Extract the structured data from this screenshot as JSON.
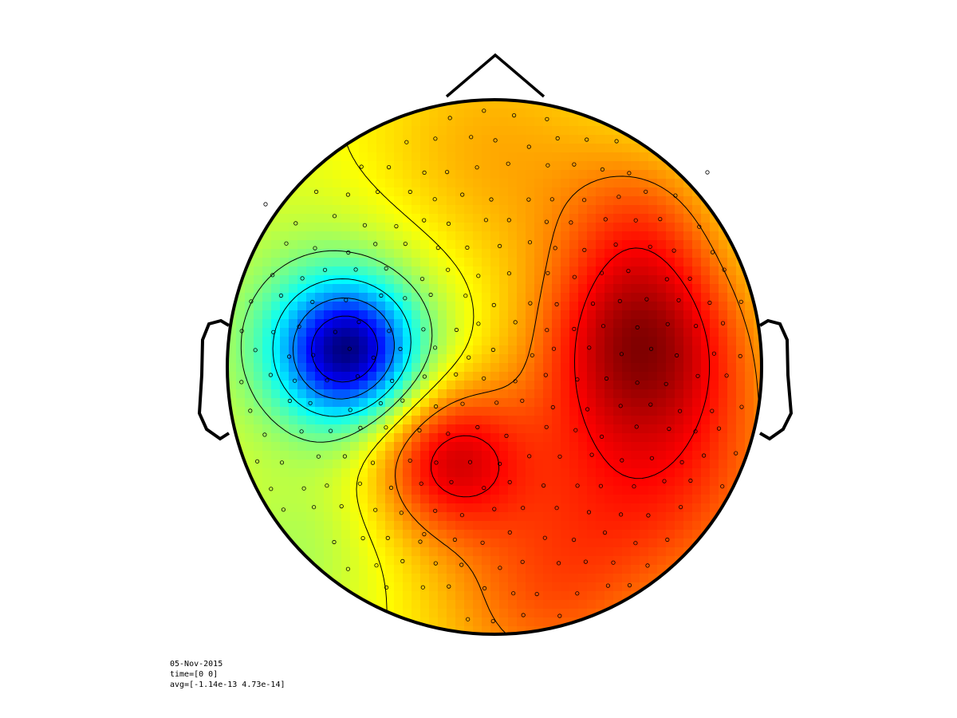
{
  "chart_data": {
    "type": "heatmap",
    "subtype": "topographic-scalp-map",
    "colormap": "jet",
    "value_range": [
      -1.14e-13,
      4.73e-14
    ],
    "footer": {
      "date": "05-Nov-2015",
      "time": "time=[0 0]",
      "avg": "avg=[-1.14e-13 4.73e-14]"
    },
    "sources": [
      {
        "u": -0.55,
        "v": -0.06,
        "amp": -1.0,
        "s": 0.17
      },
      {
        "u": -0.6,
        "v": -0.1,
        "amp": -0.3,
        "s": 0.3
      },
      {
        "u": -0.18,
        "v": 0.34,
        "amp": 0.58,
        "s": 0.2
      },
      {
        "u": 0.55,
        "v": -0.12,
        "amp": 0.6,
        "s": 0.26
      },
      {
        "u": 0.55,
        "v": -0.55,
        "amp": 0.25,
        "s": 0.22
      },
      {
        "u": 0.62,
        "v": 0.4,
        "amp": 0.45,
        "s": 0.38
      },
      {
        "u": 0.15,
        "v": 0.9,
        "amp": 0.3,
        "s": 0.3
      },
      {
        "u": -0.75,
        "v": 0.72,
        "amp": -0.12,
        "s": 0.2
      },
      {
        "u": 0.0,
        "v": -0.8,
        "amp": 0.22,
        "s": 0.35
      },
      {
        "u": 0.25,
        "v": 0.3,
        "amp": 0.05,
        "s": 0.3
      }
    ]
  }
}
